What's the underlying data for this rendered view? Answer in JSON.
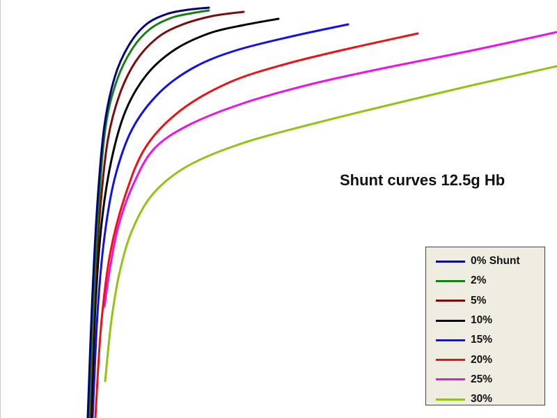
{
  "chart_data": {
    "type": "line",
    "title": "Shunt curves 12.5g Hb",
    "xlabel": "",
    "ylabel": "",
    "legend_position": "bottom-right",
    "grid": false,
    "series": [
      {
        "name": "0% Shunt",
        "color": "#00007f",
        "points": [
          [
            126,
            600
          ],
          [
            132,
            440
          ],
          [
            140,
            290
          ],
          [
            150,
            180
          ],
          [
            165,
            110
          ],
          [
            185,
            65
          ],
          [
            210,
            35
          ],
          [
            240,
            20
          ],
          [
            270,
            14
          ],
          [
            300,
            11
          ]
        ]
      },
      {
        "name": "2%",
        "color": "#138013",
        "points": [
          [
            128,
            600
          ],
          [
            134,
            440
          ],
          [
            142,
            290
          ],
          [
            152,
            180
          ],
          [
            168,
            115
          ],
          [
            190,
            70
          ],
          [
            215,
            42
          ],
          [
            245,
            26
          ],
          [
            275,
            19
          ],
          [
            300,
            15
          ]
        ]
      },
      {
        "name": "5%",
        "color": "#7a0c0c",
        "points": [
          [
            129,
            600
          ],
          [
            135,
            440
          ],
          [
            144,
            300
          ],
          [
            155,
            200
          ],
          [
            172,
            135
          ],
          [
            195,
            88
          ],
          [
            225,
            55
          ],
          [
            260,
            36
          ],
          [
            305,
            23
          ],
          [
            350,
            17
          ]
        ]
      },
      {
        "name": "10%",
        "color": "#000000",
        "points": [
          [
            131,
            600
          ],
          [
            137,
            440
          ],
          [
            146,
            320
          ],
          [
            160,
            230
          ],
          [
            180,
            160
          ],
          [
            210,
            108
          ],
          [
            250,
            72
          ],
          [
            300,
            48
          ],
          [
            350,
            36
          ],
          [
            400,
            27
          ]
        ]
      },
      {
        "name": "15%",
        "color": "#1010ee",
        "points": [
          [
            133,
            600
          ],
          [
            140,
            450
          ],
          [
            150,
            340
          ],
          [
            165,
            255
          ],
          [
            190,
            185
          ],
          [
            230,
            132
          ],
          [
            280,
            96
          ],
          [
            340,
            72
          ],
          [
            420,
            52
          ],
          [
            500,
            35
          ]
        ]
      },
      {
        "name": "20%",
        "color": "#ee1111",
        "points": [
          [
            137,
            600
          ],
          [
            145,
            470
          ],
          [
            158,
            365
          ],
          [
            180,
            280
          ],
          [
            210,
            210
          ],
          [
            260,
            158
          ],
          [
            330,
            118
          ],
          [
            410,
            92
          ],
          [
            500,
            70
          ],
          [
            600,
            48
          ]
        ]
      },
      {
        "name": "25%",
        "color": "#ee11ee",
        "points": [
          [
            150,
            440
          ],
          [
            158,
            385
          ],
          [
            170,
            325
          ],
          [
            190,
            268
          ],
          [
            220,
            215
          ],
          [
            270,
            180
          ],
          [
            350,
            148
          ],
          [
            450,
            120
          ],
          [
            560,
            96
          ],
          [
            680,
            72
          ],
          [
            800,
            46
          ]
        ]
      },
      {
        "name": "30%",
        "color": "#8fc410",
        "points": [
          [
            151,
            547
          ],
          [
            160,
            460
          ],
          [
            172,
            390
          ],
          [
            190,
            330
          ],
          [
            220,
            278
          ],
          [
            270,
            238
          ],
          [
            350,
            205
          ],
          [
            460,
            175
          ],
          [
            570,
            148
          ],
          [
            680,
            122
          ],
          [
            800,
            95
          ]
        ]
      }
    ]
  }
}
